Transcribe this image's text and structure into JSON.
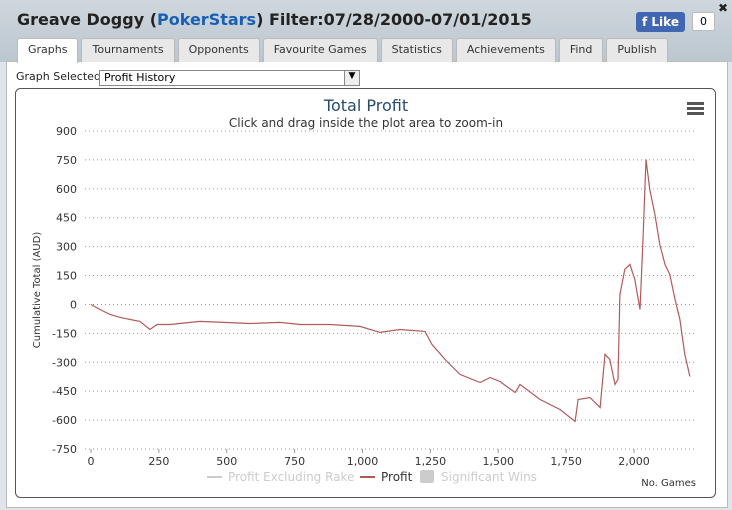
{
  "header": {
    "title_parts": [
      "Greave Doggy (",
      "PokerStars",
      ") Filter:07/28/2000-07/01/2015"
    ],
    "like": "Like",
    "like_count": "0"
  },
  "tabs": [
    "Graphs",
    "Tournaments",
    "Opponents",
    "Favourite Games",
    "Statistics",
    "Achievements",
    "Find",
    "Publish"
  ],
  "graph_selector": {
    "label": "Graph Selected:",
    "value": "Profit History"
  },
  "chart_data": {
    "type": "line",
    "title": "Total Profit",
    "subtitle": "Click and drag inside the plot area to zoom-in",
    "y_label": "Cumulative Total (AUD)",
    "x_label": "No. Games",
    "x": [
      0,
      33,
      70,
      107,
      144,
      180,
      217,
      243,
      291,
      401,
      586,
      696,
      770,
      880,
      991,
      1064,
      1138,
      1230,
      1256,
      1304,
      1359,
      1433,
      1470,
      1506,
      1562,
      1580,
      1654,
      1727,
      1783,
      1794,
      1838,
      1875,
      1893,
      1911,
      1930,
      1941,
      1948,
      1966,
      1985,
      2003,
      2022,
      2033,
      2044,
      2058,
      2077,
      2095,
      2114,
      2132,
      2151,
      2169,
      2187,
      2206
    ],
    "series": [
      {
        "name": "Profit",
        "color": "#b25a5a",
        "values": [
          0,
          -26,
          -52,
          -67,
          -78,
          -88,
          -130,
          -104,
          -104,
          -88,
          -99,
          -93,
          -104,
          -104,
          -114,
          -145,
          -130,
          -140,
          -208,
          -285,
          -363,
          -405,
          -379,
          -400,
          -457,
          -415,
          -493,
          -545,
          -607,
          -493,
          -483,
          -535,
          -259,
          -285,
          -415,
          -389,
          52,
          182,
          208,
          130,
          -26,
          337,
          752,
          597,
          467,
          311,
          208,
          156,
          26,
          -78,
          -259,
          -374
        ]
      }
    ],
    "inactive_legend": [
      "Profit Excluding Rake",
      "Significant Wins"
    ],
    "xlim": [
      0,
      2232
    ],
    "ylim": [
      -750,
      900
    ],
    "xticks": [
      0,
      250,
      500,
      750,
      {
        "value": 1000,
        "label": "1,000"
      },
      {
        "value": 1250,
        "label": "1,250"
      },
      {
        "value": 1500,
        "label": "1,500"
      },
      {
        "value": 1750,
        "label": "1,750"
      },
      {
        "value": 2000,
        "label": "2,000"
      }
    ],
    "yticks": [
      -750,
      -600,
      -450,
      -300,
      -150,
      0,
      150,
      300,
      450,
      600,
      750,
      900
    ],
    "grid": true
  }
}
